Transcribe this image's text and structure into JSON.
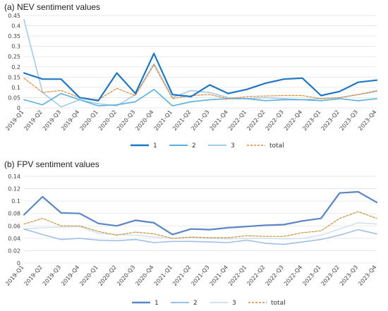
{
  "panels": {
    "top_title": "(a) NEV sentiment values",
    "bottom_title": "(b) FPV sentiment values"
  },
  "chart_data": [
    {
      "type": "line",
      "title": "(a) NEV sentiment values",
      "categories": [
        "2019-Q1",
        "2019-Q2",
        "2019-Q3",
        "2019-Q4",
        "2020-Q1",
        "2020-Q2",
        "2020-Q3",
        "2020-Q4",
        "2021-Q1",
        "2021-Q2",
        "2021-Q3",
        "2021-Q4",
        "2022-Q1",
        "2022-Q2",
        "2022-Q3",
        "2022-Q4",
        "2023-Q1",
        "2023-Q2",
        "2023-Q3",
        "2023-Q4"
      ],
      "ylim": [
        0,
        0.45
      ],
      "yticks": [
        "0",
        "0.05",
        "0.1",
        "0.15",
        "0.2",
        "0.25",
        "0.3",
        "0.35",
        "0.4",
        "0.45"
      ],
      "grid": true,
      "legend_position": "bottom",
      "series": [
        {
          "name": "1",
          "color": "#1f77c4",
          "width": 2.2,
          "dash": "none",
          "values": [
            0.17,
            0.14,
            0.14,
            0.05,
            0.035,
            0.17,
            0.07,
            0.265,
            0.065,
            0.055,
            0.112,
            0.07,
            0.09,
            0.12,
            0.14,
            0.145,
            0.06,
            0.08,
            0.125,
            0.135
          ]
        },
        {
          "name": "2",
          "color": "#5ab0e0",
          "width": 1.6,
          "dash": "none",
          "values": [
            0.04,
            0.015,
            0.07,
            0.04,
            0.01,
            0.015,
            0.03,
            0.09,
            0.01,
            0.03,
            0.04,
            0.045,
            0.045,
            0.035,
            0.04,
            0.04,
            0.035,
            0.045,
            0.035,
            0.045
          ]
        },
        {
          "name": "3",
          "color": "#a6cbe6",
          "width": 1.6,
          "dash": "none",
          "values": [
            0.43,
            0.075,
            0.005,
            0.04,
            0.02,
            0.01,
            0.065,
            0.215,
            0.05,
            0.085,
            0.075,
            0.05,
            0.045,
            0.05,
            0.045,
            0.04,
            0.045,
            0.05,
            0.065,
            0.08
          ]
        },
        {
          "name": "total",
          "color": "#e08a3c",
          "width": 1.2,
          "dash": "3,2",
          "values": [
            0.145,
            0.075,
            0.085,
            0.05,
            0.04,
            0.095,
            0.06,
            0.21,
            0.045,
            0.06,
            0.065,
            0.045,
            0.055,
            0.058,
            0.06,
            0.06,
            0.045,
            0.05,
            0.065,
            0.085
          ]
        }
      ]
    },
    {
      "type": "line",
      "title": "(b) FPV sentiment values",
      "categories": [
        "2019-Q1",
        "2019-Q2",
        "2019-Q3",
        "2019-Q4",
        "2020-Q1",
        "2020-Q2",
        "2020-Q3",
        "2020-Q4",
        "2021-Q1",
        "2021-Q2",
        "2021-Q3",
        "2021-Q4",
        "2022-Q1",
        "2022-Q2",
        "2022-Q3",
        "2022-Q4",
        "2023-Q1",
        "2023-Q2",
        "2023-Q3",
        "2023-Q4"
      ],
      "ylim": [
        0,
        0.14
      ],
      "yticks": [
        "0",
        "0.02",
        "0.04",
        "0.06",
        "0.08",
        "0.1",
        "0.12",
        "0.14"
      ],
      "grid": true,
      "legend_position": "bottom",
      "series": [
        {
          "name": "1",
          "color": "#5b86c6",
          "width": 2.2,
          "dash": "none",
          "values": [
            0.078,
            0.107,
            0.081,
            0.08,
            0.064,
            0.06,
            0.069,
            0.065,
            0.046,
            0.055,
            0.054,
            0.057,
            0.059,
            0.061,
            0.062,
            0.068,
            0.072,
            0.113,
            0.115,
            0.098
          ]
        },
        {
          "name": "2",
          "color": "#9ec0e6",
          "width": 1.6,
          "dash": "none",
          "values": [
            0.055,
            0.046,
            0.038,
            0.04,
            0.037,
            0.036,
            0.038,
            0.033,
            0.035,
            0.035,
            0.034,
            0.033,
            0.037,
            0.032,
            0.03,
            0.034,
            0.038,
            0.045,
            0.054,
            0.047
          ]
        },
        {
          "name": "3",
          "color": "#d5e1ef",
          "width": 1.6,
          "dash": "none",
          "values": [
            0.055,
            0.057,
            0.058,
            0.059,
            0.048,
            0.046,
            0.045,
            0.042,
            0.04,
            0.041,
            0.04,
            0.039,
            0.04,
            0.04,
            0.039,
            0.04,
            0.045,
            0.055,
            0.065,
            0.063
          ]
        },
        {
          "name": "total",
          "color": "#c8943a",
          "width": 1.2,
          "dash": "3,2",
          "values": [
            0.063,
            0.072,
            0.06,
            0.06,
            0.051,
            0.045,
            0.05,
            0.047,
            0.04,
            0.042,
            0.041,
            0.041,
            0.044,
            0.043,
            0.043,
            0.049,
            0.052,
            0.072,
            0.083,
            0.072
          ]
        }
      ]
    }
  ]
}
